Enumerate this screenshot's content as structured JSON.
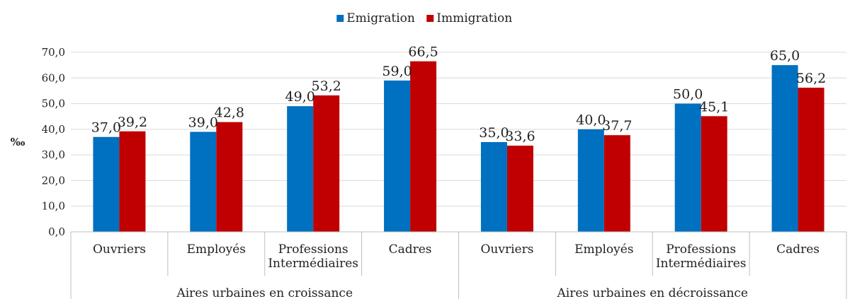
{
  "chart_data": {
    "type": "bar",
    "title": "",
    "ylabel": "‰",
    "xlabel": "",
    "ylim": [
      0,
      70
    ],
    "ytick_step": 10,
    "ytick_labels": [
      "0,0",
      "10,0",
      "20,0",
      "30,0",
      "40,0",
      "50,0",
      "60,0",
      "70,0"
    ],
    "grid": true,
    "legend_position": "top-center",
    "groups": [
      {
        "label": "Aires urbaines en croissance",
        "categories": [
          "Ouvriers",
          "Employés",
          "Professions Intermédiaires",
          "Cadres"
        ]
      },
      {
        "label": "Aires urbaines en décroissance",
        "categories": [
          "Ouvriers",
          "Employés",
          "Professions Intermédiaires",
          "Cadres"
        ]
      }
    ],
    "series": [
      {
        "name": "Emigration",
        "color": "#0070C0",
        "values": [
          37.0,
          39.0,
          49.0,
          59.0,
          35.0,
          40.0,
          50.0,
          65.0
        ],
        "labels": [
          "37,0",
          "39,0",
          "49,0",
          "59,0",
          "35,0",
          "40,0",
          "50,0",
          "65,0"
        ]
      },
      {
        "name": "Immigration",
        "color": "#C00000",
        "values": [
          39.2,
          42.8,
          53.2,
          66.5,
          33.6,
          37.7,
          45.1,
          56.2
        ],
        "labels": [
          "39,2",
          "42,8",
          "53,2",
          "66,5",
          "33,6",
          "37,7",
          "45,1",
          "56,2"
        ]
      }
    ]
  }
}
